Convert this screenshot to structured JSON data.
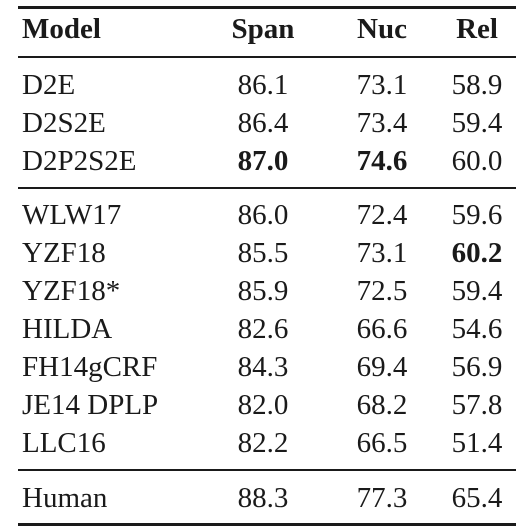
{
  "header": {
    "model": "Model",
    "span": "Span",
    "nuc": "Nuc",
    "rel": "Rel"
  },
  "groups": [
    {
      "rows": [
        {
          "model": "D2E",
          "span": "86.1",
          "nuc": "73.1",
          "rel": "58.9"
        },
        {
          "model": "D2S2E",
          "span": "86.4",
          "nuc": "73.4",
          "rel": "59.4"
        },
        {
          "model": "D2P2S2E",
          "span": "87.0",
          "nuc": "74.6",
          "rel": "60.0"
        }
      ]
    },
    {
      "rows": [
        {
          "model": "WLW17",
          "span": "86.0",
          "nuc": "72.4",
          "rel": "59.6"
        },
        {
          "model": "YZF18",
          "span": "85.5",
          "nuc": "73.1",
          "rel": "60.2"
        },
        {
          "model": "YZF18*",
          "span": "85.9",
          "nuc": "72.5",
          "rel": "59.4"
        },
        {
          "model": "HILDA",
          "span": "82.6",
          "nuc": "66.6",
          "rel": "54.6"
        },
        {
          "model": "FH14gCRF",
          "span": "84.3",
          "nuc": "69.4",
          "rel": "56.9"
        },
        {
          "model": "JE14 DPLP",
          "span": "82.0",
          "nuc": "68.2",
          "rel": "57.8"
        },
        {
          "model": "LLC16",
          "span": "82.2",
          "nuc": "66.5",
          "rel": "51.4"
        }
      ]
    },
    {
      "rows": [
        {
          "model": "Human",
          "span": "88.3",
          "nuc": "77.3",
          "rel": "65.4"
        }
      ]
    }
  ]
}
